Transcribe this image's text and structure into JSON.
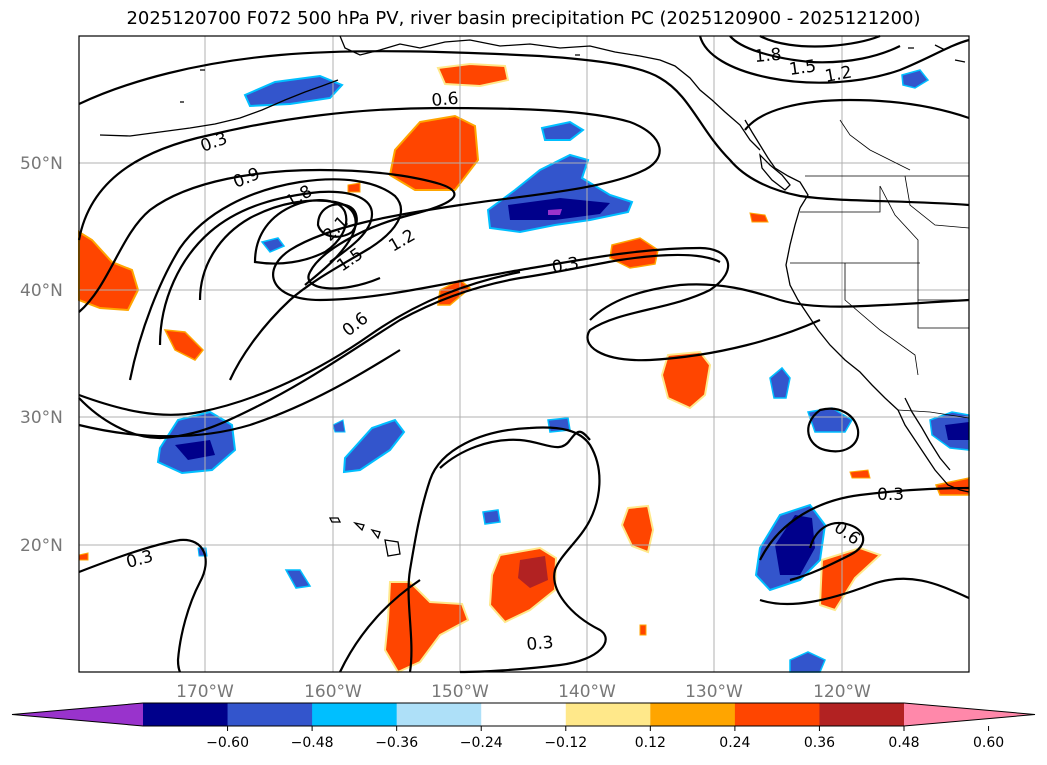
{
  "title": "2025120700 F072 500 hPa PV, river basin precipitation PC (2025120900 - 2025121200)",
  "lat_labels": [
    "50°N",
    "40°N",
    "30°N",
    "20°N"
  ],
  "lon_labels": [
    "170°W",
    "160°W",
    "150°W",
    "140°W",
    "130°W",
    "120°W"
  ],
  "contour_labels": [
    "1.8",
    "1.5",
    "1.2",
    "0.6",
    "0.3",
    "0.9",
    "1.8",
    "2.1",
    "1.5",
    "1.2",
    "0.3",
    "0.6",
    "0.3",
    "0.3",
    "0.6",
    "0.3"
  ],
  "colorbar": {
    "colors": [
      "#9933cc",
      "#00008b",
      "#3355cc",
      "#00bfff",
      "#aee0f8",
      "#ffffff",
      "#ffe88a",
      "#ffa500",
      "#ff4500",
      "#b22222",
      "#ff88aa"
    ],
    "ticks": [
      "−0.60",
      "−0.48",
      "−0.36",
      "−0.24",
      "−0.12",
      "0.12",
      "0.24",
      "0.36",
      "0.48",
      "0.60"
    ]
  },
  "map": {
    "projection": "Mercator",
    "extent": {
      "lon": [
        -180,
        -110
      ],
      "lat": [
        10,
        60
      ]
    },
    "grid": true,
    "contour_field": "500 hPa PV",
    "contour_levels": [
      0.3,
      0.6,
      0.9,
      1.2,
      1.5,
      1.8,
      2.1
    ],
    "fill_field": "river basin precipitation PC"
  }
}
